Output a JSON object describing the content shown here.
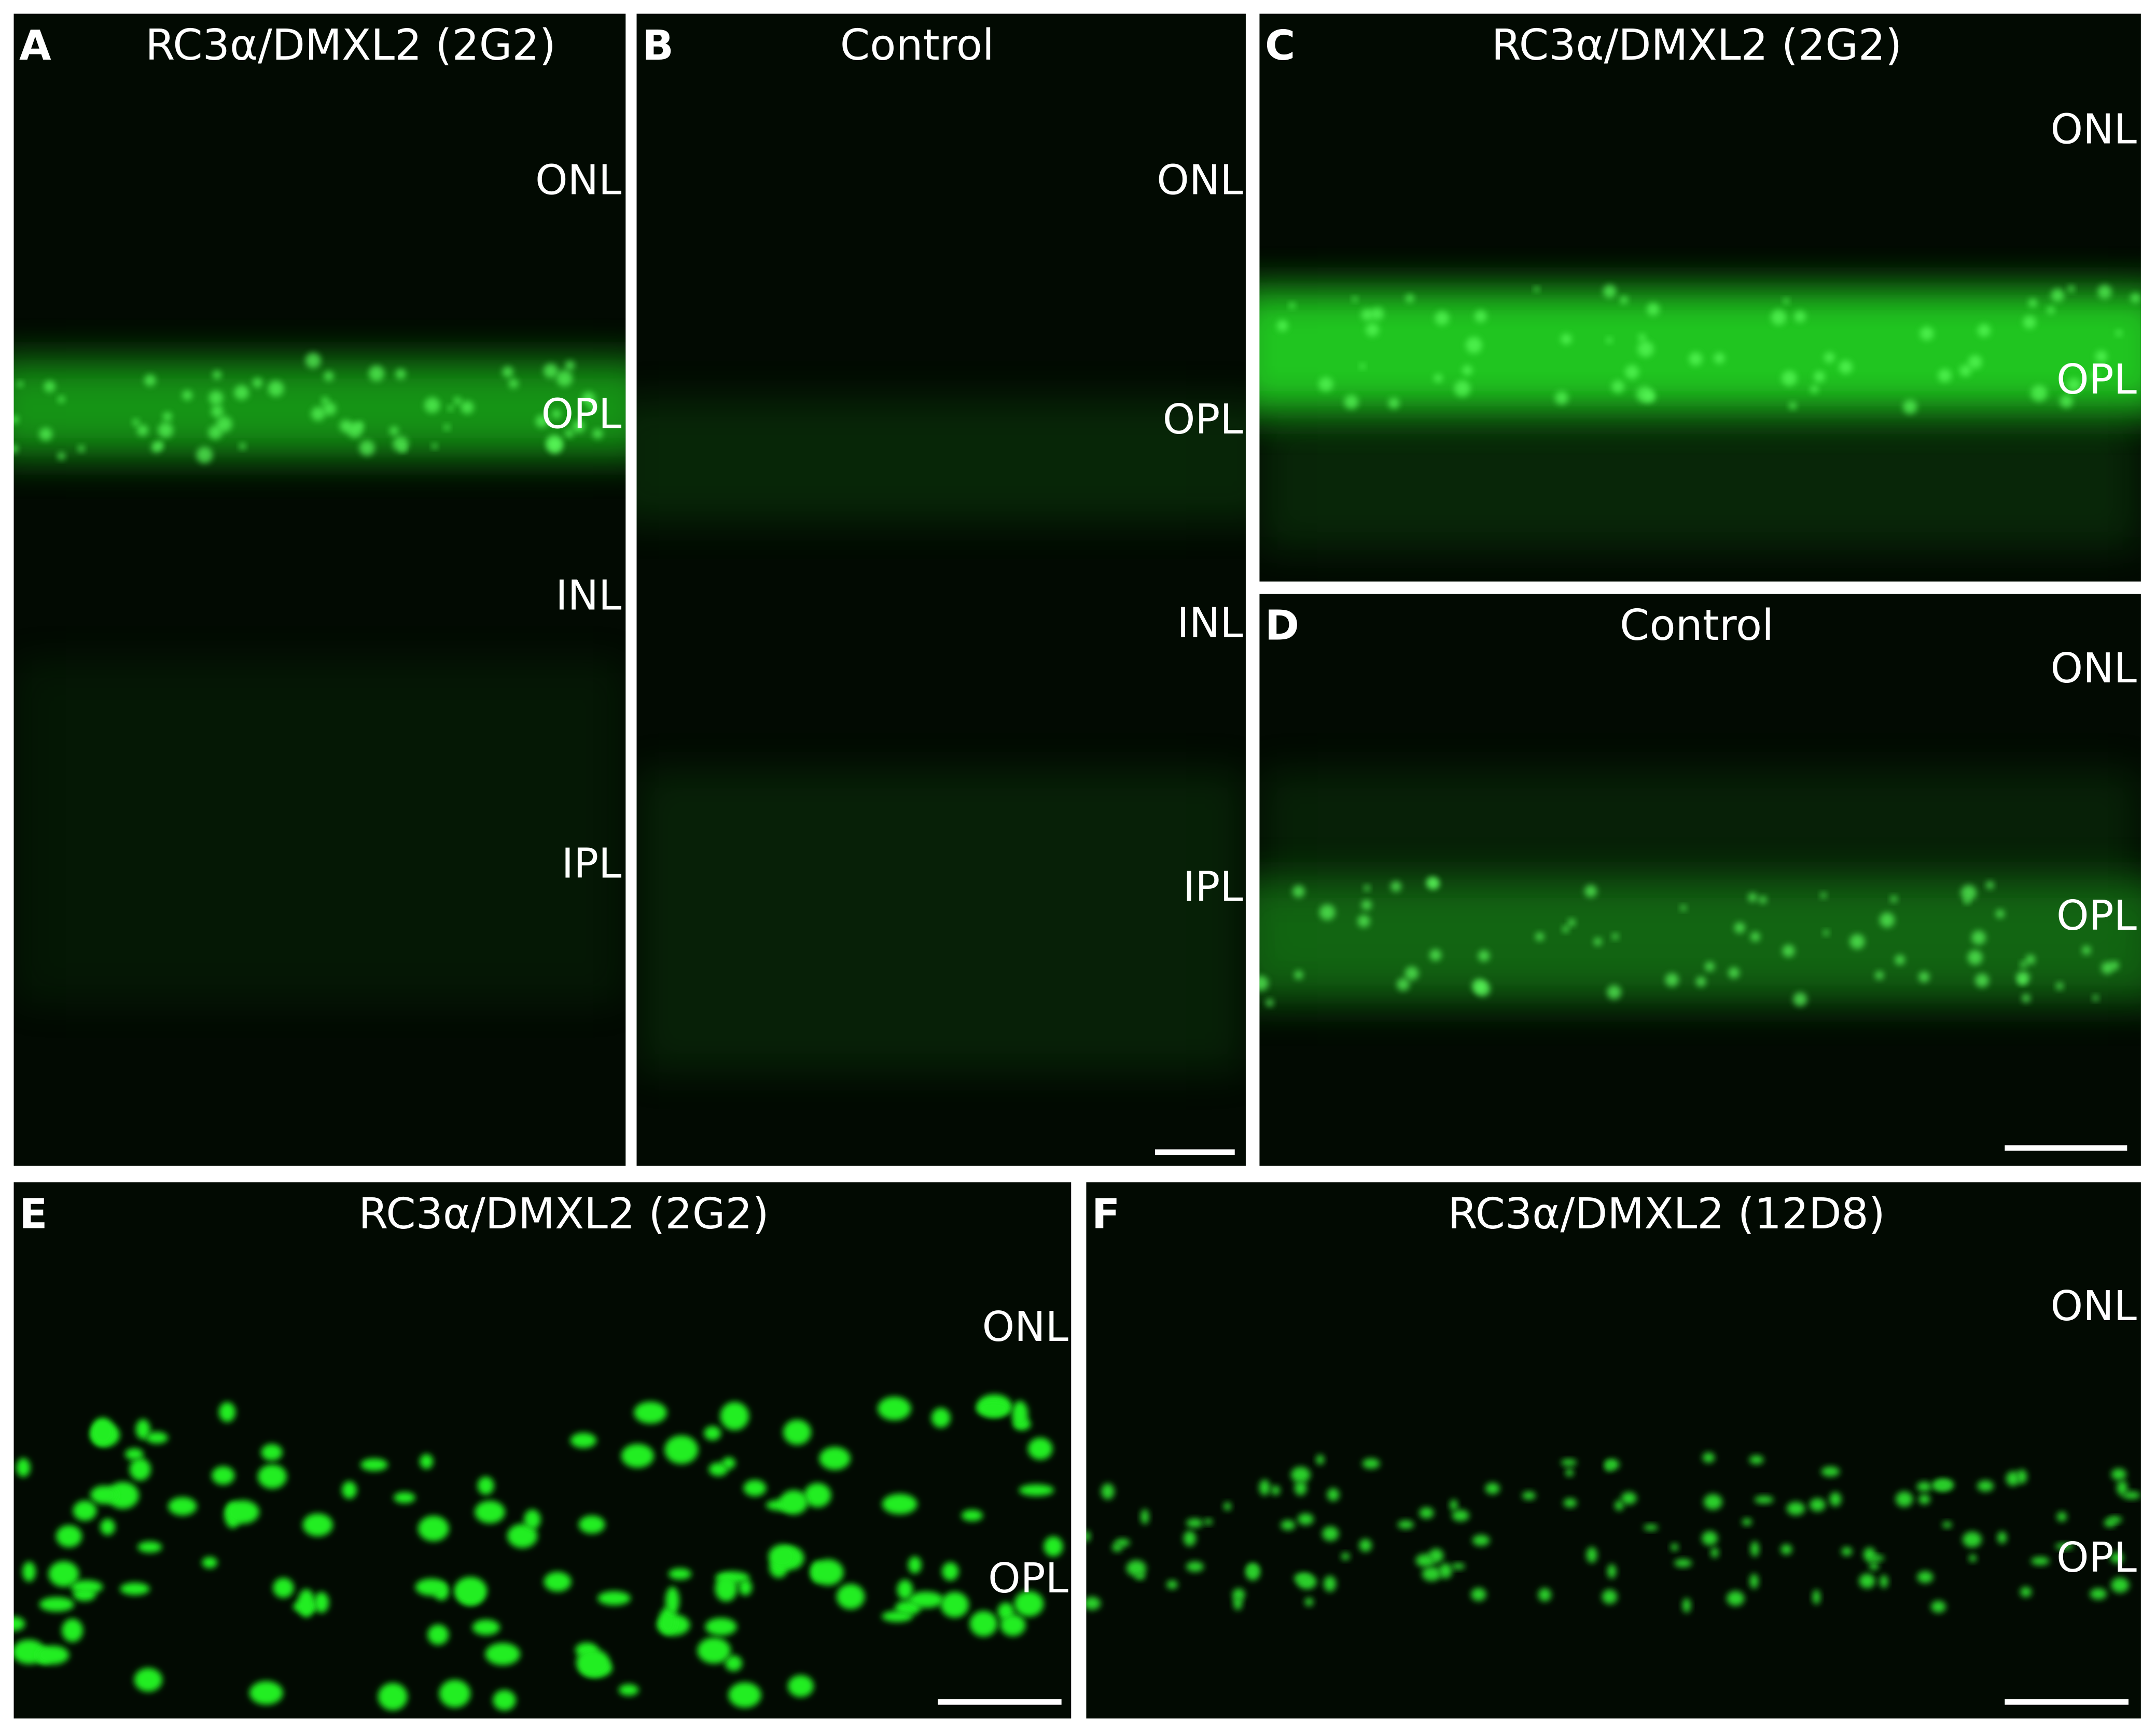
{
  "panels": [
    {
      "letter": "A",
      "title": "RC3α/DMXL2 (2G2)",
      "labels": [
        "ONL",
        "OPL",
        "INL",
        "IPL"
      ]
    },
    {
      "letter": "B",
      "title": "Control",
      "labels": [
        "ONL",
        "OPL",
        "INL",
        "IPL"
      ]
    },
    {
      "letter": "C",
      "title": "RC3α/DMXL2 (2G2)",
      "labels": [
        "ONL",
        "OPL"
      ]
    },
    {
      "letter": "D",
      "title": "Control",
      "labels": [
        "ONL",
        "OPL"
      ]
    },
    {
      "letter": "E",
      "title": "RC3α/DMXL2 (2G2)",
      "labels": [
        "ONL",
        "OPL"
      ]
    },
    {
      "letter": "F",
      "title": "RC3α/DMXL2 (12D8)",
      "labels": [
        "ONL",
        "OPL"
      ]
    }
  ]
}
